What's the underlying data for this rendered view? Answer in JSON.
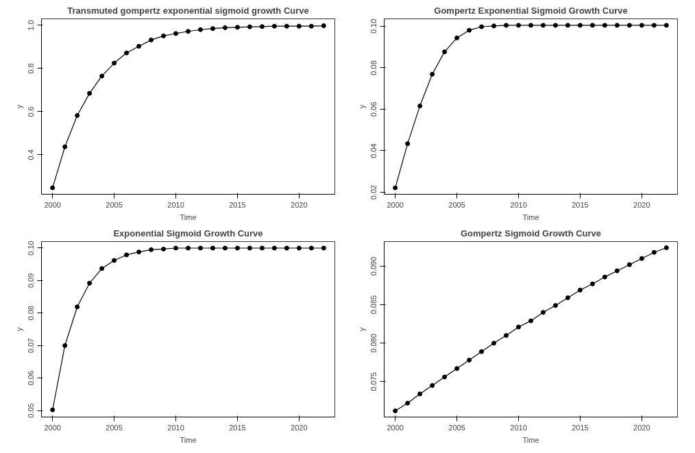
{
  "chart_data": [
    {
      "type": "line",
      "title": "Transmuted gompertz exponential sigmoid growth Curve",
      "xlabel": "Time",
      "ylabel": "y",
      "color": "#000000",
      "marker": "circle",
      "x": [
        2000,
        2001,
        2002,
        2003,
        2004,
        2005,
        2006,
        2007,
        2008,
        2009,
        2010,
        2011,
        2012,
        2013,
        2014,
        2015,
        2016,
        2017,
        2018,
        2019,
        2020,
        2021,
        2022
      ],
      "values": [
        0.247,
        0.437,
        0.582,
        0.685,
        0.765,
        0.825,
        0.872,
        0.903,
        0.932,
        0.951,
        0.962,
        0.972,
        0.98,
        0.985,
        0.989,
        0.991,
        0.993,
        0.994,
        0.996,
        0.996,
        0.996,
        0.996,
        0.998
      ],
      "xlim": [
        1999.1,
        2022.9
      ],
      "ylim": [
        0.217,
        1.03
      ],
      "xticks": [
        2000,
        2005,
        2010,
        2015,
        2020
      ],
      "yticks": [
        0.4,
        0.6,
        0.8,
        {
          "value": 1.0,
          "label": "1.0"
        }
      ]
    },
    {
      "type": "line",
      "title": "Gompertz Exponential Sigmoid Growth Curve",
      "xlabel": "Time",
      "ylabel": "y",
      "color": "#000000",
      "marker": "circle",
      "x": [
        2000,
        2001,
        2002,
        2003,
        2004,
        2005,
        2006,
        2007,
        2008,
        2009,
        2010,
        2011,
        2012,
        2013,
        2014,
        2015,
        2016,
        2017,
        2018,
        2019,
        2020,
        2021,
        2022
      ],
      "values": [
        0.0221,
        0.0434,
        0.0616,
        0.0769,
        0.0877,
        0.0944,
        0.0981,
        0.0998,
        0.1002,
        0.1005,
        0.1005,
        0.1005,
        0.1005,
        0.1005,
        0.1005,
        0.1005,
        0.1005,
        0.1005,
        0.1005,
        0.1005,
        0.1005,
        0.1005,
        0.1005
      ],
      "xlim": [
        1999.1,
        2022.9
      ],
      "ylim": [
        0.019,
        0.1036
      ],
      "xticks": [
        2000,
        2005,
        2010,
        2015,
        2020
      ],
      "yticks": [
        0.02,
        0.04,
        0.06,
        0.08,
        {
          "value": 0.1,
          "label": "0.10"
        }
      ]
    },
    {
      "type": "line",
      "title": "Exponential Sigmoid Growth Curve",
      "xlabel": "Time",
      "ylabel": "y",
      "color": "#000000",
      "marker": "circle",
      "x": [
        2000,
        2001,
        2002,
        2003,
        2004,
        2005,
        2006,
        2007,
        2008,
        2009,
        2010,
        2011,
        2012,
        2013,
        2014,
        2015,
        2016,
        2017,
        2018,
        2019,
        2020,
        2021,
        2022
      ],
      "values": [
        0.0502,
        0.07,
        0.0819,
        0.0892,
        0.0937,
        0.0962,
        0.0979,
        0.0988,
        0.0995,
        0.0997,
        0.1,
        0.1,
        0.1,
        0.1,
        0.1,
        0.1,
        0.1,
        0.1,
        0.1,
        0.1,
        0.1,
        0.1,
        0.1
      ],
      "xlim": [
        1999.1,
        2022.9
      ],
      "ylim": [
        0.048,
        0.102
      ],
      "xticks": [
        2000,
        2005,
        2010,
        2015,
        2020
      ],
      "yticks": [
        0.05,
        0.06,
        0.07,
        0.08,
        0.09,
        {
          "value": 0.1,
          "label": "0.10"
        }
      ]
    },
    {
      "type": "line",
      "title": "Gompertz Sigmoid Growth Curve",
      "xlabel": "Time",
      "ylabel": "y",
      "color": "#000000",
      "marker": "circle",
      "x": [
        2000,
        2001,
        2002,
        2003,
        2004,
        2005,
        2006,
        2007,
        2008,
        2009,
        2010,
        2011,
        2012,
        2013,
        2014,
        2015,
        2016,
        2017,
        2018,
        2019,
        2020,
        2021,
        2022
      ],
      "values": [
        0.0712,
        0.0722,
        0.0734,
        0.0745,
        0.0756,
        0.0767,
        0.0778,
        0.0789,
        0.08,
        0.081,
        0.0821,
        0.0829,
        0.084,
        0.0849,
        0.0859,
        0.0869,
        0.0877,
        0.0886,
        0.0894,
        0.0902,
        0.091,
        0.0918,
        0.0924
      ],
      "xlim": [
        1999.1,
        2022.9
      ],
      "ylim": [
        0.0704,
        0.0932
      ],
      "xticks": [
        2000,
        2005,
        2010,
        2015,
        2020
      ],
      "yticks": [
        0.075,
        {
          "value": 0.08,
          "label": "0.080"
        },
        0.085,
        {
          "value": 0.09,
          "label": "0.090"
        }
      ]
    }
  ]
}
